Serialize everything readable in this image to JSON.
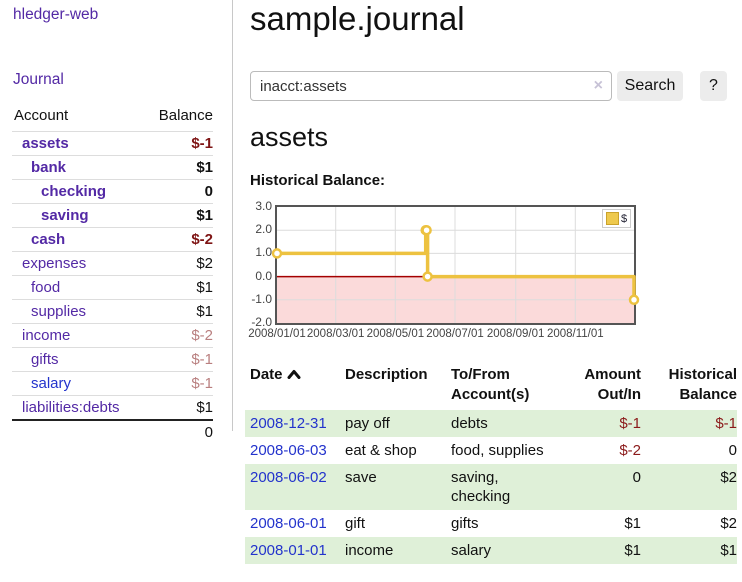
{
  "colors": {
    "link_purple": "#5329a5",
    "link_blue": "#2333cc",
    "negative_strong": "#7e1414",
    "negative_soft": "#b97f7f",
    "register_negative": "#8b1a1a",
    "row_green": "#dff0d8",
    "chart_line_gold": "#edc240"
  },
  "sidebar": {
    "app_title": "hledger-web",
    "journal_link": "Journal",
    "accounts": {
      "header_account": "Account",
      "header_balance": "Balance",
      "rows": [
        {
          "name": "assets",
          "indent": 1,
          "bold": true,
          "balance": "$-1",
          "neg": "strong"
        },
        {
          "name": "bank",
          "indent": 2,
          "bold": true,
          "balance": "$1",
          "neg": "none"
        },
        {
          "name": "checking",
          "indent": 3,
          "bold": true,
          "balance": "0",
          "neg": "none"
        },
        {
          "name": "saving",
          "indent": 3,
          "bold": true,
          "balance": "$1",
          "neg": "none"
        },
        {
          "name": "cash",
          "indent": 2,
          "bold": true,
          "balance": "$-2",
          "neg": "strong"
        },
        {
          "name": "expenses",
          "indent": 1,
          "bold": false,
          "balance": "$2",
          "neg": "none"
        },
        {
          "name": "food",
          "indent": 2,
          "bold": false,
          "balance": "$1",
          "neg": "none"
        },
        {
          "name": "supplies",
          "indent": 2,
          "bold": false,
          "balance": "$1",
          "neg": "none"
        },
        {
          "name": "income",
          "indent": 1,
          "bold": false,
          "balance": "$-2",
          "neg": "soft"
        },
        {
          "name": "gifts",
          "indent": 2,
          "bold": false,
          "balance": "$-1",
          "neg": "soft"
        },
        {
          "name": "salary",
          "indent": 2,
          "bold": false,
          "balance": "$-1",
          "neg": "soft",
          "link_color": "blue"
        },
        {
          "name": "liabilities:debts",
          "indent": 1,
          "bold": false,
          "balance": "$1",
          "neg": "none"
        }
      ],
      "total": "0"
    }
  },
  "main": {
    "title": "sample.journal",
    "search": {
      "value": "inacct:assets",
      "clear_icon": "×",
      "button_label": "Search",
      "help_label": "?"
    },
    "account_heading": "assets",
    "chart_label": "Historical Balance:"
  },
  "chart_data": {
    "type": "line",
    "title": "Historical Balance",
    "step": true,
    "series": [
      {
        "name": "$",
        "points": [
          [
            "2008-01-01",
            1
          ],
          [
            "2008-06-01",
            2
          ],
          [
            "2008-06-02",
            2
          ],
          [
            "2008-06-03",
            0
          ],
          [
            "2008-12-31",
            -1
          ]
        ]
      }
    ],
    "x_domain": [
      "2008-01-01",
      "2008-12-31"
    ],
    "ylim": [
      -2,
      3
    ],
    "y_ticks": [
      "3.0",
      "2.0",
      "1.0",
      "0.0",
      "-1.0",
      "-2.0"
    ],
    "x_ticks": [
      "2008/01/01",
      "2008/03/01",
      "2008/05/01",
      "2008/07/01",
      "2008/09/01",
      "2008/11/01"
    ],
    "grid": true,
    "legend": {
      "label": "$",
      "position": "top-right"
    },
    "colors": {
      "line": "#edc240",
      "negative_fill": "#fbdada",
      "zero_line": "#a40000"
    }
  },
  "register": {
    "columns": [
      {
        "label": "Date",
        "sorted": "asc"
      },
      {
        "label": "Description"
      },
      {
        "label": "To/From Account(s)"
      },
      {
        "label": "Amount Out/In"
      },
      {
        "label": "Historical Balance"
      }
    ],
    "rows": [
      {
        "date": "2008-12-31",
        "description": "pay off",
        "accounts": "debts",
        "amount": "$-1",
        "amount_neg": true,
        "balance": "$-1",
        "balance_neg": true
      },
      {
        "date": "2008-06-03",
        "description": "eat & shop",
        "accounts": "food, supplies",
        "amount": "$-2",
        "amount_neg": true,
        "balance": "0",
        "balance_neg": false
      },
      {
        "date": "2008-06-02",
        "description": "save",
        "accounts": "saving, checking",
        "amount": "0",
        "amount_neg": false,
        "balance": "$2",
        "balance_neg": false
      },
      {
        "date": "2008-06-01",
        "description": "gift",
        "accounts": "gifts",
        "amount": "$1",
        "amount_neg": false,
        "balance": "$2",
        "balance_neg": false
      },
      {
        "date": "2008-01-01",
        "description": "income",
        "accounts": "salary",
        "amount": "$1",
        "amount_neg": false,
        "balance": "$1",
        "balance_neg": false
      }
    ]
  }
}
